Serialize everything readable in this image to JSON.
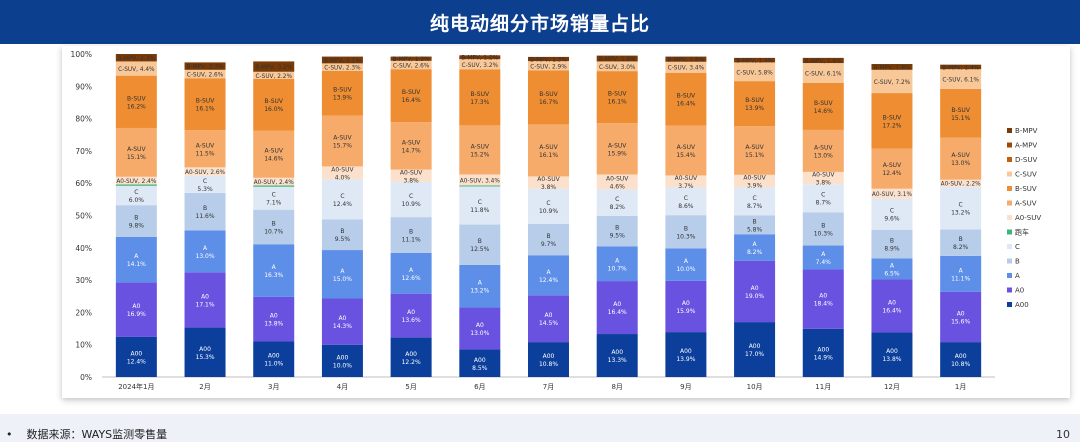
{
  "title": "纯电动细分市场销量占比",
  "footer": {
    "source_bullet": "•",
    "source_text": "数据来源：WAYS监测零售量",
    "page_number": "10"
  },
  "colors": {
    "A00": "#0b3f9b",
    "A0": "#6a52e0",
    "A": "#5d8ee8",
    "B": "#b7cdea",
    "C": "#dfe8f5",
    "跑车": "#3cb67a",
    "A0-SUV": "#fbe1cc",
    "A-SUV": "#f6ab6b",
    "B-SUV": "#ee8d31",
    "C-SUV": "#f8c899",
    "D-SUV": "#c55e0c",
    "A-MPV": "#9c4a0a",
    "B-MPV": "#7a3a06"
  },
  "chart_data": {
    "type": "bar",
    "stacked": true,
    "percent": true,
    "categories": [
      "2024年1月",
      "2月",
      "3月",
      "4月",
      "5月",
      "6月",
      "7月",
      "8月",
      "9月",
      "10月",
      "11月",
      "12月",
      "1月"
    ],
    "yticks": [
      "0%",
      "10%",
      "20%",
      "30%",
      "40%",
      "50%",
      "60%",
      "70%",
      "80%",
      "90%",
      "100%"
    ],
    "ylim": [
      0,
      100
    ],
    "legend_position": "right",
    "legend_order": [
      "B-MPV",
      "A-MPV",
      "D-SUV",
      "C-SUV",
      "B-SUV",
      "A-SUV",
      "A0-SUV",
      "跑车",
      "C",
      "B",
      "A",
      "A0",
      "A00"
    ],
    "series": [
      {
        "name": "A00",
        "values": [
          12.4,
          15.3,
          11.0,
          10.0,
          12.2,
          8.5,
          10.8,
          13.3,
          13.9,
          17.0,
          14.9,
          13.8,
          10.8
        ],
        "labels": [
          "12.4%",
          "15.3%",
          "11.0%",
          "10.0%",
          "12.2%",
          "8.5%",
          "10.8%",
          "13.3%",
          "13.9%",
          "17.0%",
          "14.9%",
          "13.8%",
          "10.8%"
        ]
      },
      {
        "name": "A0",
        "values": [
          16.9,
          17.1,
          13.8,
          14.3,
          13.6,
          13.0,
          14.5,
          16.4,
          15.9,
          19.0,
          18.4,
          16.4,
          15.6
        ],
        "labels": [
          "16.9%",
          "17.1%",
          "13.8%",
          "14.3%",
          "13.6%",
          "13.0%",
          "14.5%",
          "16.4%",
          "15.9%",
          "19.0%",
          "18.4%",
          "16.4%",
          "15.6%"
        ]
      },
      {
        "name": "A",
        "values": [
          14.1,
          13.0,
          16.3,
          15.0,
          12.6,
          13.2,
          12.4,
          10.7,
          10.0,
          8.2,
          7.4,
          6.5,
          11.1
        ],
        "labels": [
          "14.1%",
          "13.0%",
          "16.3%",
          "15.0%",
          "12.6%",
          "13.2%",
          "12.4%",
          "10.7%",
          "10.0%",
          "8.2%",
          "7.4%",
          "6.5%",
          "11.1%"
        ]
      },
      {
        "name": "B",
        "values": [
          9.8,
          11.6,
          10.7,
          9.5,
          11.1,
          12.5,
          9.7,
          9.5,
          10.3,
          5.8,
          10.3,
          8.9,
          8.2
        ],
        "labels": [
          "9.8%",
          "11.6%",
          "10.7%",
          "9.5%",
          "11.1%",
          "12.5%",
          "9.7%",
          "9.5%",
          "10.3%",
          "5.8%",
          "10.3%",
          "8.9%",
          "8.2%"
        ]
      },
      {
        "name": "C",
        "values": [
          6.0,
          5.3,
          7.1,
          12.4,
          10.9,
          11.8,
          10.9,
          8.2,
          8.6,
          8.7,
          8.7,
          9.6,
          13.2
        ],
        "labels": [
          "6.0%",
          "5.3%",
          "7.1%",
          "12.4%",
          "10.9%",
          "11.8%",
          "10.9%",
          "8.2%",
          "8.6%",
          "8.7%",
          "8.7%",
          "9.6%",
          "13.2%"
        ]
      },
      {
        "name": "跑车",
        "values": [
          0.4,
          0,
          0.4,
          0,
          0,
          0.3,
          0,
          0,
          0,
          0,
          0,
          0,
          0
        ],
        "labels": []
      },
      {
        "name": "A0-SUV",
        "values": [
          2.4,
          2.6,
          2.4,
          4.0,
          3.8,
          3.4,
          3.8,
          4.6,
          3.7,
          3.9,
          3.8,
          3.1,
          2.2
        ],
        "labels": [
          "2.4%",
          "2.6%",
          "2.4%",
          "4.0%",
          "3.8%",
          "3.4%",
          "3.8%",
          "4.6%",
          "3.7%",
          "3.9%",
          "3.8%",
          "3.1%",
          "2.2%"
        ]
      },
      {
        "name": "A-SUV",
        "values": [
          15.1,
          11.5,
          14.6,
          15.7,
          14.7,
          15.2,
          16.1,
          15.9,
          15.4,
          15.1,
          13.0,
          12.4,
          13.0
        ],
        "labels": [
          "15.1%",
          "11.5%",
          "14.6%",
          "15.7%",
          "14.7%",
          "15.2%",
          "16.1%",
          "15.9%",
          "15.4%",
          "15.1%",
          "13.0%",
          "12.4%",
          "13.0%"
        ]
      },
      {
        "name": "B-SUV",
        "values": [
          16.2,
          16.1,
          16.0,
          13.9,
          16.4,
          17.3,
          16.7,
          16.1,
          16.4,
          13.9,
          14.6,
          17.2,
          15.1
        ],
        "labels": [
          "16.2%",
          "16.1%",
          "16.0%",
          "13.9%",
          "16.4%",
          "17.3%",
          "16.7%",
          "16.1%",
          "16.4%",
          "13.9%",
          "14.6%",
          "17.2%",
          "15.1%"
        ]
      },
      {
        "name": "C-SUV",
        "values": [
          4.4,
          2.6,
          2.2,
          2.3,
          2.6,
          3.2,
          2.9,
          3.0,
          3.4,
          5.8,
          6.1,
          7.2,
          6.1
        ],
        "labels": [
          "4.4%",
          "2.6%",
          "2.2%",
          "2.3%",
          "2.6%",
          "3.2%",
          "2.9%",
          "3.0%",
          "3.4%",
          "5.8%",
          "6.1%",
          "7.2%",
          "6.1%"
        ]
      },
      {
        "name": "D-SUV",
        "values": [
          0,
          0,
          0,
          0,
          0,
          0,
          0,
          0,
          0,
          0,
          0,
          0,
          0
        ],
        "labels": []
      },
      {
        "name": "A-MPV",
        "values": [
          0,
          0,
          0,
          0,
          0,
          0,
          0,
          0,
          0,
          0,
          0,
          0,
          0
        ],
        "labels": []
      },
      {
        "name": "B-MPV",
        "values": [
          2.3,
          2.3,
          3.2,
          2.1,
          1.3,
          1.2,
          1.3,
          1.8,
          1.6,
          1.4,
          1.6,
          1.8,
          1.4
        ],
        "labels": [
          "2.3%",
          "2.3%",
          "3.2%",
          "2.1%",
          "1.3%",
          "1.2%",
          "1.3%",
          "1.8%",
          "1.6%",
          "1.4%",
          "1.6%",
          "1.8%",
          "1.4%"
        ]
      }
    ]
  }
}
